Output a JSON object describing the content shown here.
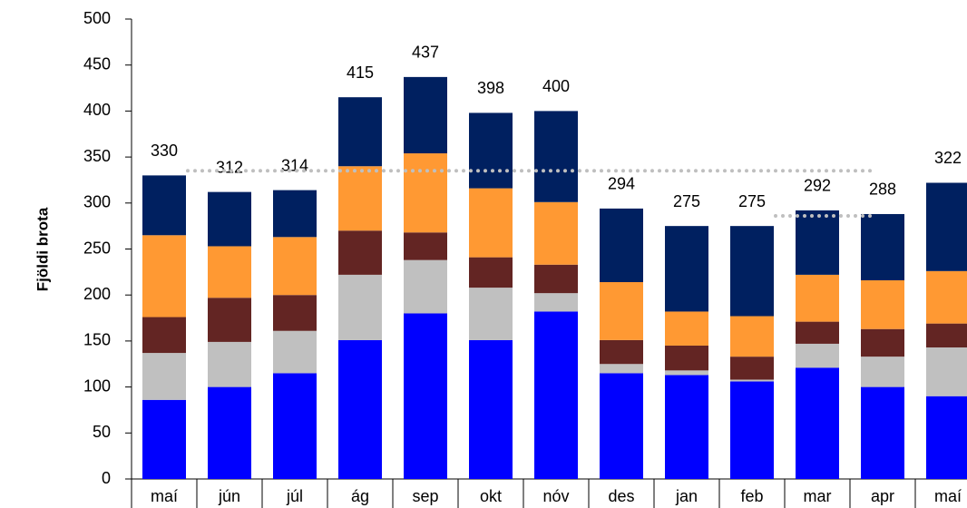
{
  "chart_data": {
    "type": "stacked_bar",
    "y_label": "Fjöldi brota",
    "categories": [
      "maí",
      "jún",
      "júl",
      "ág",
      "sep",
      "okt",
      "nóv",
      "des",
      "jan",
      "feb",
      "mar",
      "apr",
      "maí"
    ],
    "series": [
      {
        "color": "#0000ff",
        "values": [
          86,
          100,
          115,
          151,
          180,
          151,
          182,
          115,
          113,
          106,
          121,
          100,
          90
        ]
      },
      {
        "color": "#c0c0c0",
        "values": [
          51,
          49,
          46,
          71,
          58,
          57,
          20,
          10,
          5,
          2,
          26,
          33,
          53
        ]
      },
      {
        "color": "#632523",
        "values": [
          39,
          48,
          39,
          48,
          30,
          33,
          31,
          26,
          27,
          25,
          24,
          30,
          26
        ]
      },
      {
        "color": "#ff9933",
        "values": [
          89,
          56,
          63,
          70,
          86,
          75,
          68,
          63,
          37,
          44,
          51,
          53,
          57
        ]
      },
      {
        "color": "#002060",
        "values": [
          65,
          59,
          51,
          75,
          83,
          82,
          99,
          80,
          93,
          98,
          70,
          72,
          96
        ]
      }
    ],
    "totals": [
      330,
      312,
      314,
      415,
      437,
      398,
      400,
      294,
      275,
      275,
      292,
      288,
      322
    ],
    "reference_lines": [
      {
        "value": 335,
        "from": 0,
        "to": 11,
        "color": "#bfbfbf"
      },
      {
        "value": 286,
        "from": 9,
        "to": 11,
        "color": "#bfbfbf"
      }
    ],
    "ylim": [
      0,
      500
    ],
    "yticks": [
      0,
      50,
      100,
      150,
      200,
      250,
      300,
      350,
      400,
      450,
      500
    ]
  }
}
